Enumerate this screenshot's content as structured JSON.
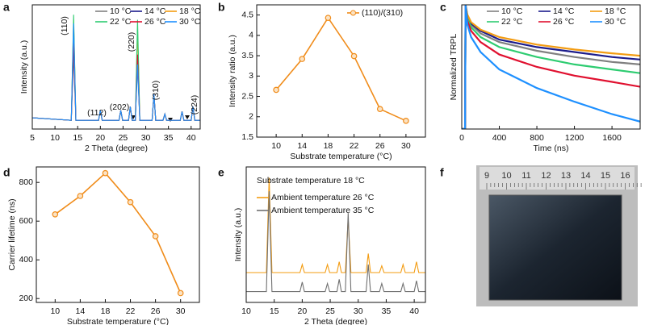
{
  "chart_data": [
    {
      "type": "line",
      "panel": "a",
      "xlabel": "2 Theta (degree)",
      "ylabel": "Intensity (a.u.)",
      "xlim": [
        5,
        42
      ],
      "xticks": [
        5,
        10,
        15,
        20,
        25,
        30,
        35,
        40
      ],
      "ylim": [
        0,
        100
      ],
      "legend_position": "upper right",
      "annotations": [
        "(110)",
        "(112)",
        "(202)",
        "(220)",
        "(310)",
        "(224)"
      ],
      "x": [
        5,
        13.6,
        14.1,
        14.6,
        19.6,
        20.0,
        20.4,
        24.1,
        24.5,
        24.9,
        26.2,
        26.6,
        27.0,
        27.7,
        28.2,
        28.7,
        31.4,
        31.8,
        32.2,
        33.8,
        34.2,
        34.6,
        37.6,
        38.0,
        38.4,
        40.0,
        40.4,
        40.8,
        42
      ],
      "series": [
        {
          "name": "10 °C",
          "color": "#808080",
          "values": [
            9,
            7,
            60,
            7,
            7,
            15,
            7,
            7,
            15,
            7,
            7,
            18,
            7,
            7,
            50,
            7,
            7,
            28,
            7,
            7,
            12,
            7,
            7,
            14,
            7,
            7,
            18,
            7,
            7
          ]
        },
        {
          "name": "14 °C",
          "color": "#1c1c8c",
          "values": [
            9,
            7,
            70,
            7,
            7,
            15,
            7,
            7,
            15,
            7,
            7,
            18,
            7,
            7,
            55,
            7,
            7,
            28,
            7,
            7,
            12,
            7,
            7,
            14,
            7,
            7,
            18,
            7,
            7
          ]
        },
        {
          "name": "18 °C",
          "color": "#f39c12",
          "values": [
            9,
            7,
            88,
            7,
            7,
            15,
            7,
            7,
            15,
            7,
            7,
            18,
            7,
            7,
            80,
            7,
            7,
            28,
            7,
            7,
            12,
            7,
            7,
            14,
            7,
            7,
            18,
            7,
            7
          ]
        },
        {
          "name": "22 °C",
          "color": "#2ecc71",
          "values": [
            9,
            7,
            92,
            7,
            7,
            15,
            7,
            7,
            15,
            7,
            7,
            18,
            7,
            7,
            88,
            7,
            7,
            28,
            7,
            7,
            12,
            7,
            7,
            14,
            7,
            7,
            18,
            7,
            7
          ]
        },
        {
          "name": "26 °C",
          "color": "#e0102f",
          "values": [
            9,
            7,
            75,
            7,
            7,
            15,
            7,
            7,
            15,
            7,
            7,
            18,
            7,
            7,
            60,
            7,
            7,
            28,
            7,
            7,
            12,
            7,
            7,
            14,
            7,
            7,
            18,
            7,
            7
          ]
        },
        {
          "name": "30 °C",
          "color": "#1e90ff",
          "values": [
            9,
            7,
            85,
            7,
            7,
            15,
            7,
            7,
            15,
            7,
            7,
            18,
            7,
            7,
            52,
            7,
            7,
            28,
            7,
            7,
            12,
            7,
            7,
            14,
            7,
            7,
            18,
            7,
            7
          ]
        }
      ]
    },
    {
      "type": "line",
      "panel": "b",
      "xlabel": "Substrate temperature (°C)",
      "ylabel": "Intensity ratio (a.u.)",
      "xlim": [
        7,
        33
      ],
      "xticks": [
        10,
        14,
        18,
        22,
        26,
        30
      ],
      "ylim": [
        1.5,
        4.75
      ],
      "yticks": [
        1.5,
        2.0,
        2.5,
        3.0,
        3.5,
        4.0,
        4.5
      ],
      "markers": true,
      "legend_position": "upper right",
      "x": [
        10,
        14,
        18,
        22,
        26,
        30
      ],
      "series": [
        {
          "name": "(110)/(310)",
          "color": "#f08c1a",
          "values": [
            2.66,
            3.42,
            4.43,
            3.49,
            2.19,
            1.9
          ]
        }
      ]
    },
    {
      "type": "line",
      "panel": "c",
      "xlabel": "Time (ns)",
      "ylabel": "Normalized TRPL",
      "xlim": [
        0,
        1900
      ],
      "xticks": [
        0,
        400,
        800,
        1200,
        1600
      ],
      "ylim": [
        0,
        1
      ],
      "legend_position": "upper right",
      "x": [
        0,
        35,
        40,
        60,
        100,
        200,
        400,
        800,
        1200,
        1600,
        1900
      ],
      "series": [
        {
          "name": "10 °C",
          "color": "#808080",
          "values": [
            0,
            0,
            1.0,
            0.9,
            0.84,
            0.77,
            0.7,
            0.63,
            0.58,
            0.54,
            0.52
          ]
        },
        {
          "name": "14 °C",
          "color": "#1c1c8c",
          "values": [
            0,
            0,
            1.0,
            0.91,
            0.85,
            0.79,
            0.72,
            0.66,
            0.62,
            0.58,
            0.56
          ]
        },
        {
          "name": "18 °C",
          "color": "#f39c12",
          "values": [
            0,
            0,
            1.0,
            0.92,
            0.86,
            0.8,
            0.74,
            0.68,
            0.64,
            0.61,
            0.59
          ]
        },
        {
          "name": "22 °C",
          "color": "#2ecc71",
          "values": [
            0,
            0,
            1.0,
            0.89,
            0.82,
            0.74,
            0.66,
            0.58,
            0.52,
            0.48,
            0.45
          ]
        },
        {
          "name": "26 °C",
          "color": "#e0102f",
          "values": [
            0,
            0,
            1.0,
            0.87,
            0.79,
            0.7,
            0.6,
            0.5,
            0.43,
            0.38,
            0.34
          ]
        },
        {
          "name": "30 °C",
          "color": "#1e90ff",
          "values": [
            0,
            0,
            1.0,
            0.84,
            0.74,
            0.62,
            0.48,
            0.33,
            0.22,
            0.12,
            0.06
          ]
        }
      ]
    },
    {
      "type": "line",
      "panel": "d",
      "xlabel": "Substrate temperature (°C)",
      "ylabel": "Carrier lifetime (ns)",
      "xlim": [
        7,
        33
      ],
      "xticks": [
        10,
        14,
        18,
        22,
        26,
        30
      ],
      "ylim": [
        180,
        880
      ],
      "yticks": [
        200,
        400,
        600,
        800
      ],
      "markers": true,
      "color": "#f08c1a",
      "x": [
        10,
        14,
        18,
        22,
        26,
        30
      ],
      "values": [
        635,
        730,
        848,
        698,
        522,
        228
      ]
    },
    {
      "type": "line",
      "panel": "e",
      "xlabel": "2 Theta (degree)",
      "ylabel": "Intensity (a.u.)",
      "xlim": [
        10,
        42
      ],
      "xticks": [
        10,
        15,
        20,
        25,
        30,
        35,
        40
      ],
      "ylim": [
        0,
        100
      ],
      "legend_position": "upper left",
      "annotation": "Substrate temperature 18 °C",
      "x": [
        10,
        13.6,
        14.1,
        14.6,
        19.6,
        20.0,
        20.4,
        24.1,
        24.5,
        24.9,
        26.2,
        26.6,
        27.0,
        27.7,
        28.2,
        28.7,
        31.4,
        31.8,
        32.2,
        33.8,
        34.2,
        34.6,
        37.6,
        38.0,
        38.4,
        40.0,
        40.4,
        40.8,
        42
      ],
      "series": [
        {
          "name": "Ambient temperature 26 °C",
          "color": "#f39c12",
          "values": [
            22,
            22,
            92,
            22,
            22,
            28,
            22,
            22,
            28,
            22,
            22,
            30,
            22,
            22,
            62,
            22,
            22,
            36,
            22,
            22,
            27,
            22,
            22,
            28,
            22,
            22,
            30,
            22,
            22
          ]
        },
        {
          "name": "Ambient temperature 35 °C",
          "color": "#707070",
          "values": [
            8,
            8,
            82,
            8,
            8,
            15,
            8,
            8,
            14,
            8,
            8,
            17,
            8,
            8,
            66,
            8,
            8,
            28,
            8,
            8,
            14,
            8,
            8,
            14,
            8,
            8,
            16,
            8,
            8
          ]
        }
      ]
    }
  ],
  "photo": {
    "panel": "f",
    "ruler_labels": [
      "9",
      "10",
      "11",
      "12",
      "13",
      "14",
      "15",
      "16"
    ]
  }
}
